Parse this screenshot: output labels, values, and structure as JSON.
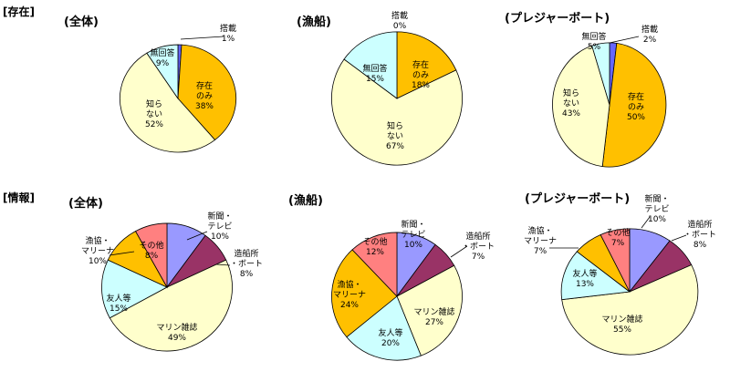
{
  "sections": [
    {
      "label": "[存在]"
    },
    {
      "label": "[情報]"
    }
  ],
  "chart_data": [
    {
      "type": "pie",
      "section": "[存在]",
      "title": "(全体)",
      "slices": [
        {
          "label": "搭載",
          "value": 1,
          "value_label": "1%",
          "color": "#6666ff"
        },
        {
          "label": "存在のみ",
          "value": 38,
          "value_label": "38%",
          "color": "#ffc000"
        },
        {
          "label": "知らない",
          "value": 52,
          "value_label": "52%",
          "color": "#ffffcc"
        },
        {
          "label": "無回答",
          "value": 9,
          "value_label": "9%",
          "color": "#ccffff"
        }
      ]
    },
    {
      "type": "pie",
      "section": "[存在]",
      "title": "(漁船)",
      "slices": [
        {
          "label": "搭載",
          "value": 0,
          "value_label": "0%",
          "color": "#6666ff"
        },
        {
          "label": "存在のみ",
          "value": 18,
          "value_label": "18%",
          "color": "#ffc000"
        },
        {
          "label": "知らない",
          "value": 67,
          "value_label": "67%",
          "color": "#ffffcc"
        },
        {
          "label": "無回答",
          "value": 15,
          "value_label": "15%",
          "color": "#ccffff"
        }
      ]
    },
    {
      "type": "pie",
      "section": "[存在]",
      "title": "(プレジャーボート)",
      "slices": [
        {
          "label": "搭載",
          "value": 2,
          "value_label": "2%",
          "color": "#6666ff"
        },
        {
          "label": "存在のみ",
          "value": 50,
          "value_label": "50%",
          "color": "#ffc000"
        },
        {
          "label": "知らない",
          "value": 43,
          "value_label": "43%",
          "color": "#ffffcc"
        },
        {
          "label": "無回答",
          "value": 5,
          "value_label": "5%",
          "color": "#ccffff"
        }
      ]
    },
    {
      "type": "pie",
      "section": "[情報]",
      "title": "(全体)",
      "slices": [
        {
          "label": "新聞・テレビ",
          "value": 10,
          "value_label": "10%",
          "color": "#9999ff"
        },
        {
          "label": "造船所・ボート",
          "value": 8,
          "value_label": "8%",
          "color": "#993366"
        },
        {
          "label": "マリン雑誌",
          "value": 49,
          "value_label": "49%",
          "color": "#ffffcc"
        },
        {
          "label": "友人等",
          "value": 15,
          "value_label": "15%",
          "color": "#ccffff"
        },
        {
          "label": "漁協・マリーナ",
          "value": 10,
          "value_label": "10%",
          "color": "#ffc000"
        },
        {
          "label": "その他",
          "value": 8,
          "value_label": "8%",
          "color": "#ff8080"
        }
      ]
    },
    {
      "type": "pie",
      "section": "[情報]",
      "title": "(漁船)",
      "slices": [
        {
          "label": "新聞・テレビ",
          "value": 10,
          "value_label": "10%",
          "color": "#9999ff"
        },
        {
          "label": "造船所・ボート",
          "value": 7,
          "value_label": "7%",
          "color": "#993366"
        },
        {
          "label": "マリン雑誌",
          "value": 27,
          "value_label": "27%",
          "color": "#ffffcc"
        },
        {
          "label": "友人等",
          "value": 20,
          "value_label": "20%",
          "color": "#ccffff"
        },
        {
          "label": "漁協・マリーナ",
          "value": 24,
          "value_label": "24%",
          "color": "#ffc000"
        },
        {
          "label": "その他",
          "value": 12,
          "value_label": "12%",
          "color": "#ff8080"
        }
      ]
    },
    {
      "type": "pie",
      "section": "[情報]",
      "title": "(プレジャーボート)",
      "slices": [
        {
          "label": "新聞・テレビ",
          "value": 10,
          "value_label": "10%",
          "color": "#9999ff"
        },
        {
          "label": "造船所・ボート",
          "value": 8,
          "value_label": "8%",
          "color": "#993366"
        },
        {
          "label": "マリン雑誌",
          "value": 55,
          "value_label": "55%",
          "color": "#ffffcc"
        },
        {
          "label": "友人等",
          "value": 13,
          "value_label": "13%",
          "color": "#ccffff"
        },
        {
          "label": "漁協・マリーナ",
          "value": 7,
          "value_label": "7%",
          "color": "#ffc000"
        },
        {
          "label": "その他",
          "value": 7,
          "value_label": "7%",
          "color": "#ff8080"
        }
      ]
    }
  ]
}
